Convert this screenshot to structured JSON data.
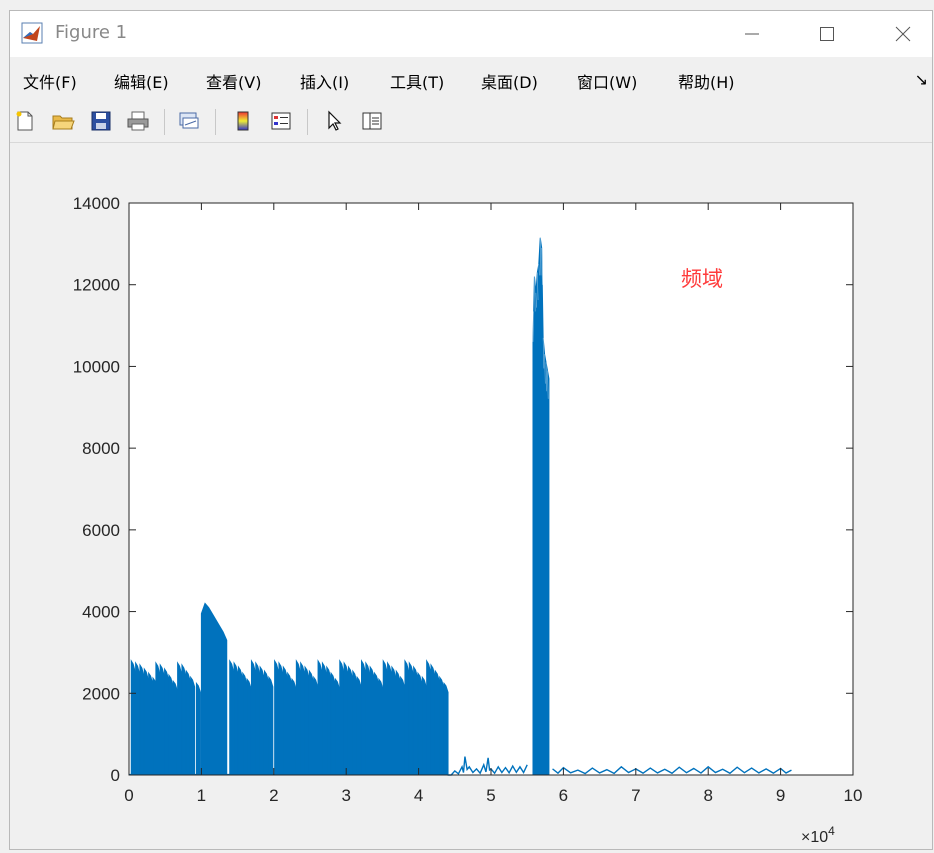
{
  "window": {
    "title": "Figure 1"
  },
  "menu": {
    "items": [
      "文件(F)",
      "编辑(E)",
      "查看(V)",
      "插入(I)",
      "工具(T)",
      "桌面(D)",
      "窗口(W)",
      "帮助(H)"
    ]
  },
  "toolbar": {
    "icons": [
      "new-figure-icon",
      "open-file-icon",
      "save-icon",
      "print-icon",
      "link-plot-icon",
      "insert-colorbar-icon",
      "insert-legend-icon",
      "edit-plot-pointer-icon",
      "property-inspector-icon"
    ]
  },
  "colors": {
    "series": "#0072bd",
    "annotation": "#ff3b3b",
    "axis": "#262626"
  },
  "chart_data": {
    "type": "line",
    "title": "",
    "xlabel": "",
    "ylabel": "",
    "xlim": [
      0,
      100000
    ],
    "ylim": [
      0,
      14000
    ],
    "x_ticks": [
      0,
      10000,
      20000,
      30000,
      40000,
      50000,
      60000,
      70000,
      80000,
      90000,
      100000
    ],
    "x_tick_labels": [
      "0",
      "1",
      "2",
      "3",
      "4",
      "5",
      "6",
      "7",
      "8",
      "9",
      "10"
    ],
    "x_exponent_label": "×10",
    "x_exponent_power": "4",
    "y_ticks": [
      0,
      2000,
      4000,
      6000,
      8000,
      10000,
      12000,
      14000
    ],
    "y_tick_labels": [
      "0",
      "2000",
      "4000",
      "6000",
      "8000",
      "10000",
      "12000",
      "14000"
    ],
    "grid": false,
    "annotation": "频域",
    "series": [
      {
        "color": "#0072bd",
        "comb_peaks": [
          [
            300,
            2800
          ],
          [
            900,
            2750
          ],
          [
            1500,
            2700
          ],
          [
            2100,
            2600
          ],
          [
            2700,
            2500
          ],
          [
            3300,
            2380
          ],
          [
            3700,
            2750
          ],
          [
            4300,
            2700
          ],
          [
            4900,
            2600
          ],
          [
            5500,
            2450
          ],
          [
            6100,
            2300
          ],
          [
            6700,
            2750
          ],
          [
            7300,
            2700
          ],
          [
            7900,
            2550
          ],
          [
            8500,
            2400
          ],
          [
            9300,
            2250
          ],
          [
            10500,
            2650
          ],
          [
            11100,
            2600
          ],
          [
            11700,
            2500
          ],
          [
            12300,
            2450
          ],
          [
            13900,
            2800
          ],
          [
            14500,
            2750
          ],
          [
            15100,
            2650
          ],
          [
            15700,
            2500
          ],
          [
            16300,
            2350
          ],
          [
            16900,
            2800
          ],
          [
            17500,
            2750
          ],
          [
            18100,
            2650
          ],
          [
            18700,
            2550
          ],
          [
            19300,
            2400
          ],
          [
            20100,
            2800
          ],
          [
            20700,
            2750
          ],
          [
            21300,
            2650
          ],
          [
            21900,
            2500
          ],
          [
            22500,
            2350
          ],
          [
            23100,
            2800
          ],
          [
            23700,
            2750
          ],
          [
            24300,
            2650
          ],
          [
            24900,
            2550
          ],
          [
            25500,
            2400
          ],
          [
            26100,
            2800
          ],
          [
            26700,
            2750
          ],
          [
            27300,
            2650
          ],
          [
            27900,
            2500
          ],
          [
            28500,
            2350
          ],
          [
            29100,
            2800
          ],
          [
            29700,
            2750
          ],
          [
            30300,
            2650
          ],
          [
            30900,
            2550
          ],
          [
            31500,
            2400
          ],
          [
            32100,
            2800
          ],
          [
            32700,
            2750
          ],
          [
            33300,
            2650
          ],
          [
            33900,
            2500
          ],
          [
            34500,
            2350
          ],
          [
            35100,
            2800
          ],
          [
            35700,
            2750
          ],
          [
            36300,
            2650
          ],
          [
            36900,
            2550
          ],
          [
            37500,
            2400
          ],
          [
            38100,
            2800
          ],
          [
            38700,
            2750
          ],
          [
            39300,
            2650
          ],
          [
            39900,
            2500
          ],
          [
            40500,
            2400
          ],
          [
            41100,
            2800
          ],
          [
            41700,
            2700
          ],
          [
            42300,
            2550
          ],
          [
            42900,
            2400
          ],
          [
            43500,
            2250
          ]
        ],
        "band_1": {
          "x": [
            10000,
            10500,
            11000,
            11500,
            12000,
            12500,
            13000,
            13500
          ],
          "y": [
            3950,
            4200,
            4100,
            3950,
            3800,
            3650,
            3500,
            3300
          ]
        },
        "band_2": {
          "x": [
            55800,
            56000,
            56200,
            56400,
            56600,
            56800,
            57000,
            57200,
            57400,
            57600,
            57800,
            58000
          ],
          "y": [
            10600,
            12200,
            11800,
            12300,
            12500,
            13150,
            12900,
            10700,
            10300,
            10100,
            9900,
            9700
          ]
        },
        "floor_1": {
          "x": [
            44000,
            45000,
            46000,
            46400,
            47000,
            48000,
            49000,
            49600,
            50000,
            51000,
            52000,
            53000,
            54000,
            55000
          ],
          "y": [
            0,
            100,
            200,
            450,
            200,
            150,
            250,
            420,
            150,
            200,
            180,
            220,
            200,
            250
          ]
        },
        "floor_2": {
          "x": [
            58500,
            60000,
            62000,
            64000,
            66000,
            68000,
            70000,
            72000,
            74000,
            76000,
            78000,
            80000,
            82000,
            84000,
            86000,
            88000,
            90000,
            91500
          ],
          "y": [
            150,
            180,
            120,
            170,
            130,
            200,
            150,
            170,
            140,
            190,
            160,
            200,
            140,
            190,
            170,
            150,
            160,
            120
          ]
        }
      }
    ]
  }
}
